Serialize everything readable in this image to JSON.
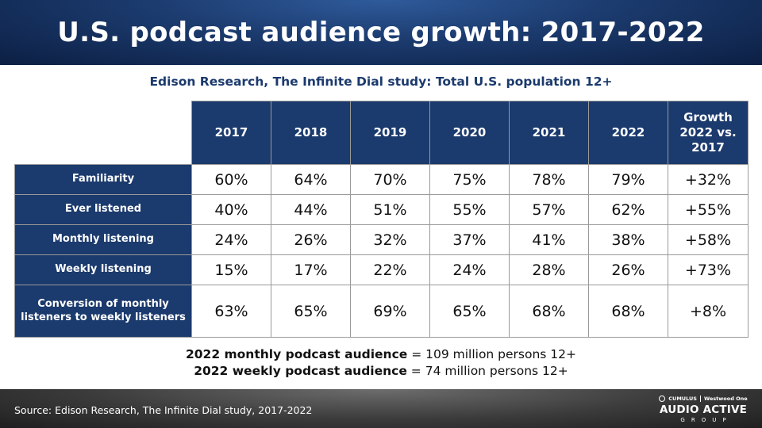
{
  "title": "U.S. podcast audience growth: 2017-2022",
  "chart_data": {
    "type": "table",
    "title": "Edison Research, The Infinite Dial study: Total U.S. population 12+",
    "columns": [
      "2017",
      "2018",
      "2019",
      "2020",
      "2021",
      "2022",
      "Growth 2022 vs. 2017"
    ],
    "rows": [
      {
        "label": "Familiarity",
        "values": [
          "60%",
          "64%",
          "70%",
          "75%",
          "78%",
          "79%",
          "+32%"
        ]
      },
      {
        "label": "Ever listened",
        "values": [
          "40%",
          "44%",
          "51%",
          "55%",
          "57%",
          "62%",
          "+55%"
        ]
      },
      {
        "label": "Monthly listening",
        "values": [
          "24%",
          "26%",
          "32%",
          "37%",
          "41%",
          "38%",
          "+58%"
        ]
      },
      {
        "label": "Weekly listening",
        "values": [
          "15%",
          "17%",
          "22%",
          "24%",
          "28%",
          "26%",
          "+73%"
        ]
      },
      {
        "label": "Conversion of monthly listeners to weekly listeners",
        "values": [
          "63%",
          "65%",
          "69%",
          "65%",
          "68%",
          "68%",
          "+8%"
        ]
      }
    ]
  },
  "notes": [
    {
      "bold": "2022 monthly podcast audience",
      "text": " = 109 million persons 12+"
    },
    {
      "bold": "2022 weekly podcast audience",
      "text": " = 74 million persons 12+"
    }
  ],
  "footer": {
    "source": "Source: Edison Research, The Infinite Dial study, 2017-2022",
    "logo_cumulus": "CUMULUS",
    "logo_westwood": "Westwood One",
    "logo_main": "AUDIO ACTIVE",
    "logo_sub": "GROUP"
  }
}
